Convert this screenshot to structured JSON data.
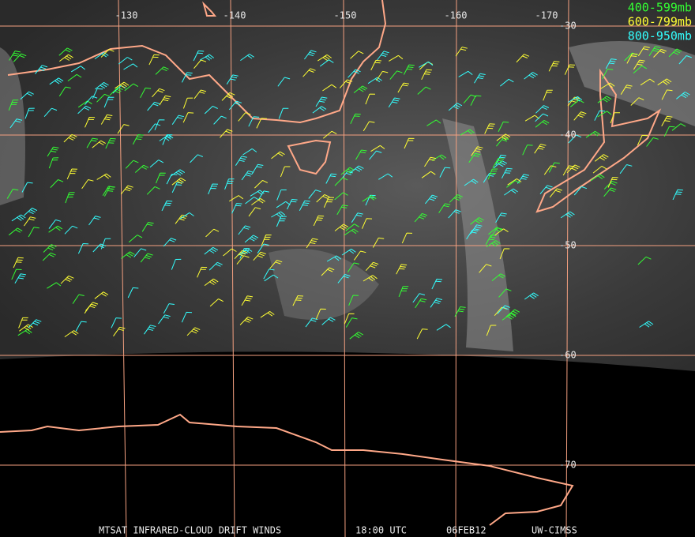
{
  "map": {
    "longitude_labels": [
      "-130",
      "-140",
      "-150",
      "-160",
      "-170"
    ],
    "latitude_labels": [
      "-30",
      "-40",
      "-50",
      "-60",
      "-70"
    ],
    "legend": [
      {
        "label": "400-599mb",
        "color": "#33ff33"
      },
      {
        "label": "600-799mb",
        "color": "#ffff33"
      },
      {
        "label": "800-950mb",
        "color": "#33ffff"
      }
    ]
  },
  "footer": {
    "source": "MTSAT INFRARED-CLOUD DRIFT WINDS",
    "time": "18:00 UTC",
    "date": "06FEB12",
    "credit": "UW-CIMSS"
  }
}
